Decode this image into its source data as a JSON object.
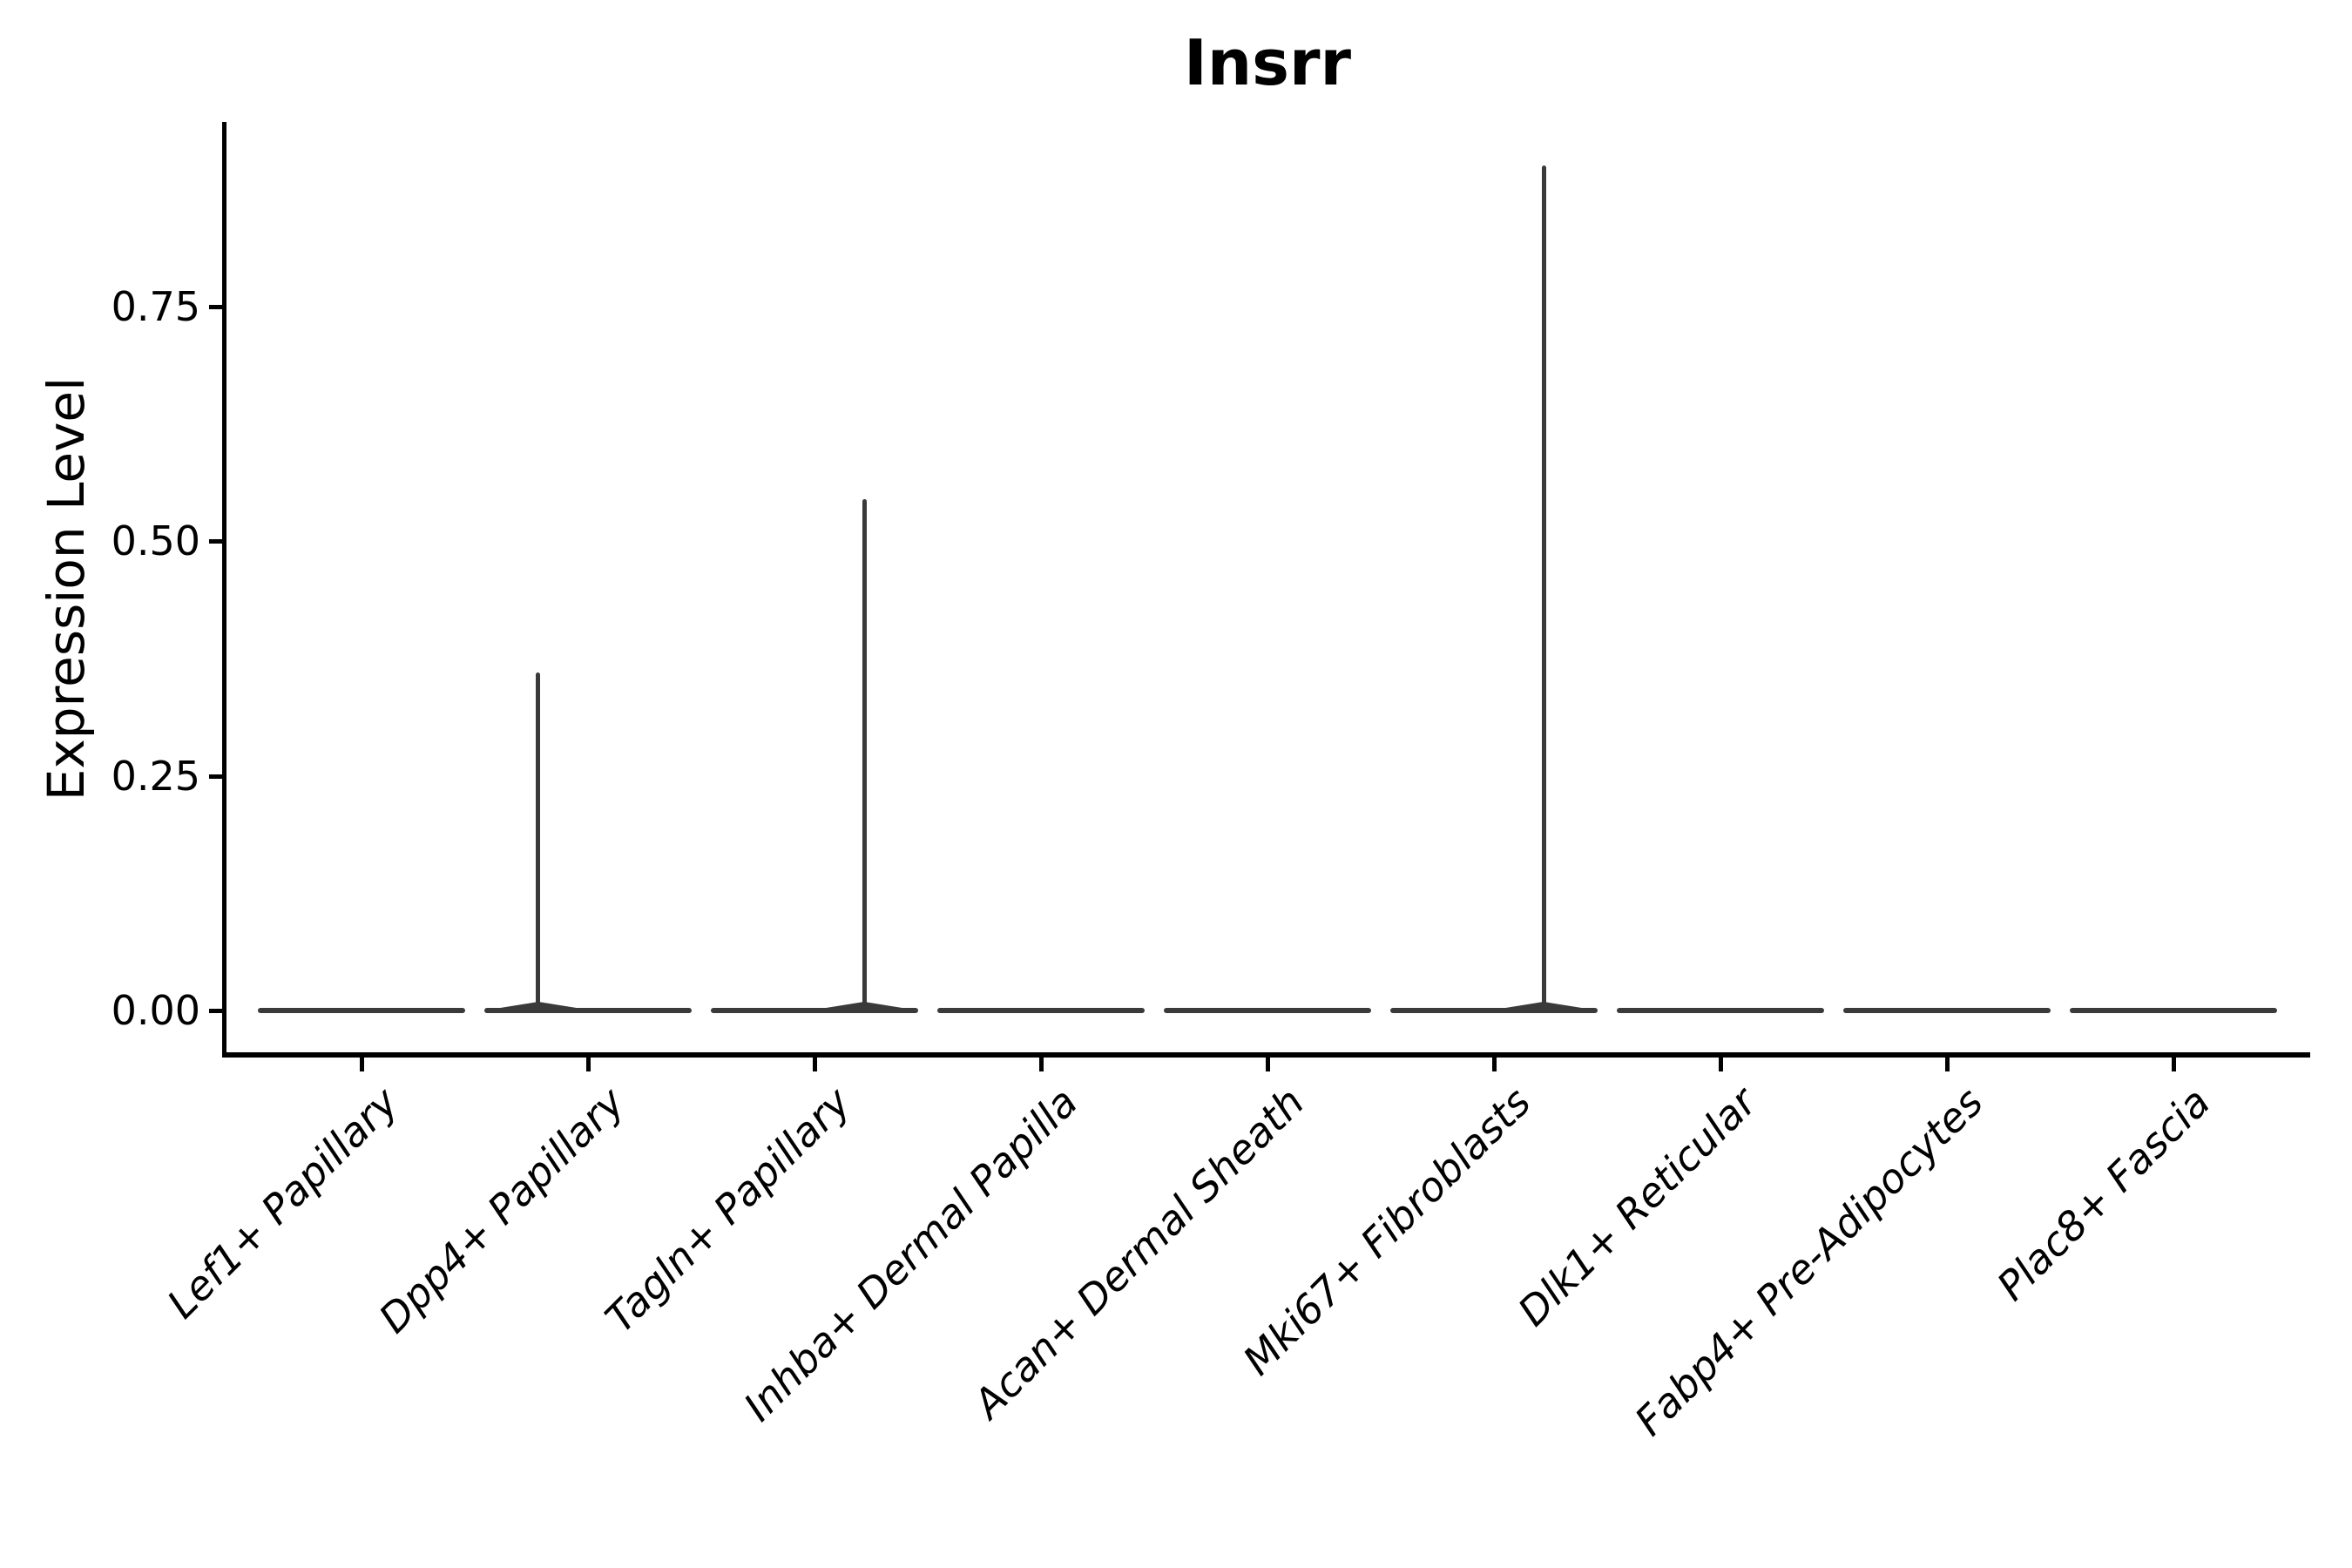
{
  "chart_data": {
    "type": "violin",
    "title": "Insrr",
    "xlabel": "",
    "ylabel": "Expression Level",
    "categories": [
      "Lef1+ Papillary",
      "Dpp4+ Papillary",
      "Tagln+ Papillary",
      "Inhba+ Dermal Papilla",
      "Acan+ Dermal Sheath",
      "Mki67+ Fibroblasts",
      "Dlk1+ Reticular",
      "Fabp4+ Pre-Adipocytes",
      "Plac8+ Fascia"
    ],
    "y_ticks": [
      "0.00",
      "0.25",
      "0.50",
      "0.75"
    ],
    "y_tick_values": [
      0.0,
      0.25,
      0.5,
      0.75
    ],
    "ylim": [
      -0.045,
      0.947
    ],
    "grid": false,
    "legend_position": "none",
    "x_tick_label_style": "italic, rotated 45deg, right-anchored",
    "violins": [
      {
        "category": "Lef1+ Papillary",
        "body": "flat-at-zero",
        "max_expression": 0.0
      },
      {
        "category": "Dpp4+ Papillary",
        "body": "flat-at-zero",
        "max_expression": 0.36,
        "spike_offset_frac": -0.22
      },
      {
        "category": "Tagln+ Papillary",
        "body": "flat-at-zero",
        "max_expression": 0.545,
        "spike_offset_frac": 0.22
      },
      {
        "category": "Inhba+ Dermal Papilla",
        "body": "flat-at-zero",
        "max_expression": 0.0
      },
      {
        "category": "Acan+ Dermal Sheath",
        "body": "flat-at-zero",
        "max_expression": 0.0
      },
      {
        "category": "Mki67+ Fibroblasts",
        "body": "flat-at-zero",
        "max_expression": 0.9,
        "spike_offset_frac": 0.22
      },
      {
        "category": "Dlk1+ Reticular",
        "body": "flat-at-zero",
        "max_expression": 0.0
      },
      {
        "category": "Fabp4+ Pre-Adipocytes",
        "body": "flat-at-zero",
        "max_expression": 0.0
      },
      {
        "category": "Plac8+ Fascia",
        "body": "flat-at-zero",
        "max_expression": 0.0
      }
    ],
    "colors": {
      "violin_stroke": "#3A3A3A",
      "axis": "#000000",
      "text": "#000000",
      "background": "#FFFFFF"
    }
  }
}
